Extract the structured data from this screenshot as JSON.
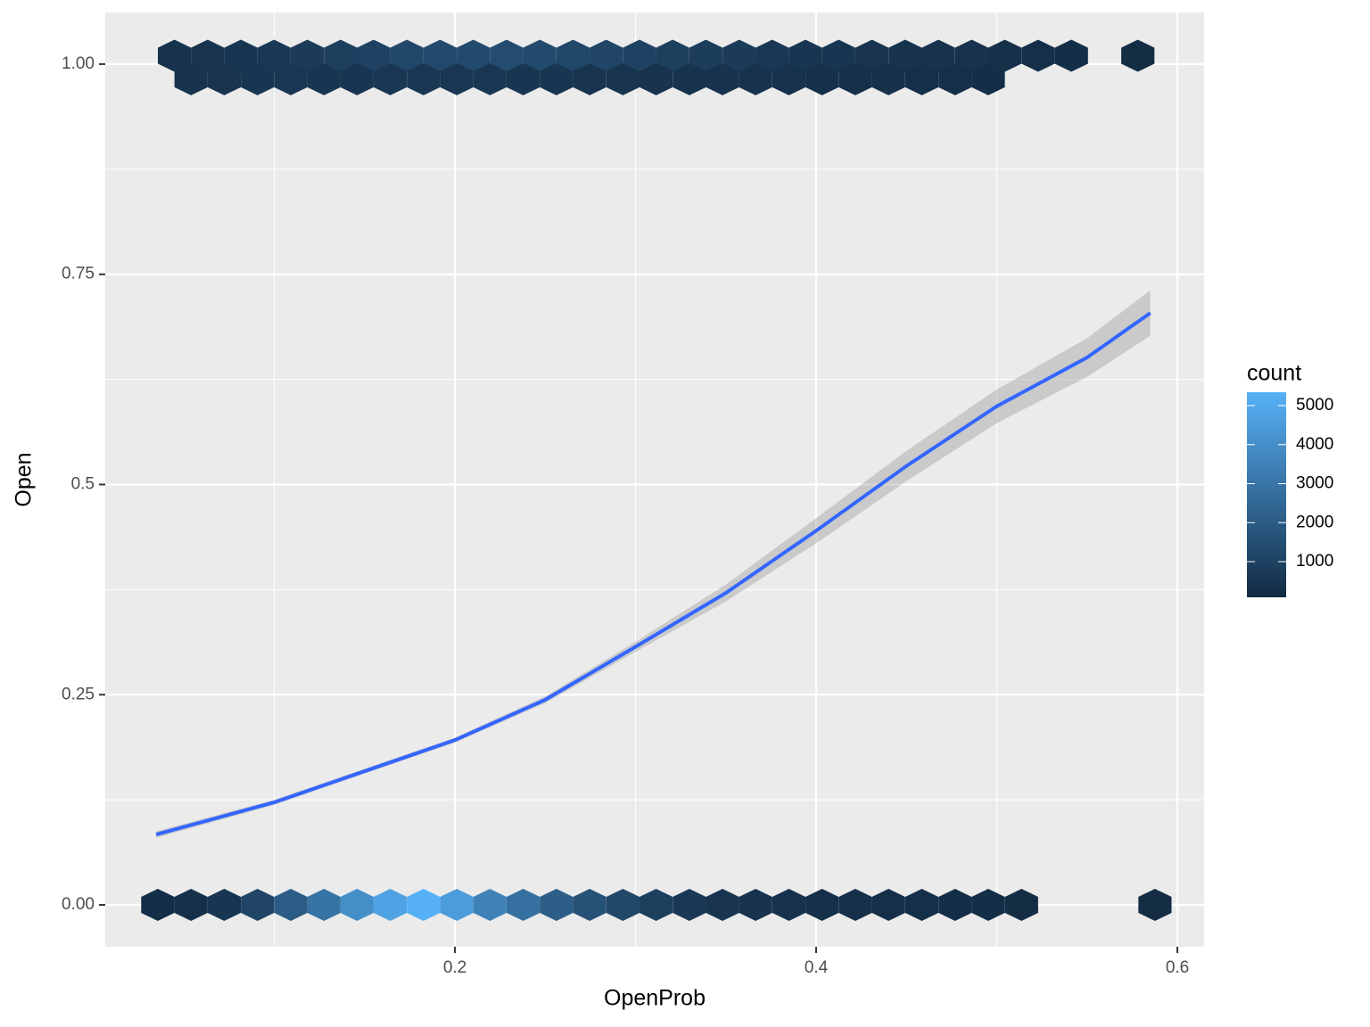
{
  "chart_data": {
    "type": "hexbin",
    "xlabel": "OpenProb",
    "ylabel": "Open",
    "x": [
      0.0355,
      0.0539,
      0.0723,
      0.0907,
      0.1091,
      0.1275,
      0.1458,
      0.1642,
      0.1826,
      0.201,
      0.2194,
      0.2378,
      0.2562,
      0.2746,
      0.293,
      0.3114,
      0.3298,
      0.3482,
      0.3665,
      0.3849,
      0.4033,
      0.4217,
      0.4401,
      0.4585,
      0.4769,
      0.4953,
      0.5137,
      0.5876,
      0.0447,
      0.0631,
      0.0815,
      0.0999,
      0.1183,
      0.1367,
      0.155,
      0.1734,
      0.1918,
      0.2102,
      0.2286,
      0.247,
      0.2654,
      0.2838,
      0.3022,
      0.3206,
      0.339,
      0.3574,
      0.3757,
      0.3941,
      0.4125,
      0.4309,
      0.4493,
      0.4677,
      0.4861,
      0.5045,
      0.5229,
      0.5413,
      0.5781,
      0.0539,
      0.0723,
      0.0907,
      0.1091,
      0.1275,
      0.1458,
      0.1642,
      0.1826,
      0.201,
      0.2194,
      0.2378,
      0.2562,
      0.2746,
      0.293,
      0.3114,
      0.3298,
      0.3482,
      0.3665,
      0.3849,
      0.4033,
      0.4217,
      0.4401,
      0.4585,
      0.4769,
      0.4953
    ],
    "y": [
      0,
      0,
      0,
      0,
      0,
      0,
      0,
      0,
      0,
      0,
      0,
      0,
      0,
      0,
      0,
      0,
      0,
      0,
      0,
      0,
      0,
      0,
      0,
      0,
      0,
      0,
      0,
      0,
      1.01,
      1.01,
      1.01,
      1.01,
      1.01,
      1.01,
      1.01,
      1.01,
      1.01,
      1.01,
      1.01,
      1.01,
      1.01,
      1.01,
      1.01,
      1.01,
      1.01,
      1.01,
      1.01,
      1.01,
      1.01,
      1.01,
      1.01,
      1.01,
      1.01,
      1.01,
      1.01,
      1.01,
      1.01,
      0.982,
      0.982,
      0.982,
      0.982,
      0.982,
      0.982,
      0.982,
      0.982,
      0.982,
      0.982,
      0.982,
      0.982,
      0.982,
      0.982,
      0.982,
      0.982,
      0.982,
      0.982,
      0.982,
      0.982,
      0.982,
      0.982,
      0.982,
      0.982,
      0.982
    ],
    "counts": [
      200,
      300,
      500,
      1100,
      2000,
      2900,
      4000,
      4800,
      5300,
      4500,
      3500,
      2800,
      2100,
      1600,
      1200,
      900,
      600,
      450,
      400,
      350,
      300,
      300,
      250,
      250,
      200,
      200,
      150,
      150,
      350,
      450,
      500,
      600,
      700,
      900,
      1000,
      1200,
      1300,
      1300,
      1400,
      1300,
      1200,
      1100,
      1000,
      900,
      800,
      700,
      600,
      500,
      500,
      450,
      400,
      400,
      350,
      300,
      250,
      200,
      150,
      400,
      450,
      500,
      550,
      500,
      500,
      550,
      550,
      550,
      550,
      500,
      500,
      450,
      450,
      400,
      400,
      400,
      350,
      350,
      300,
      300,
      300,
      250,
      250,
      200
    ],
    "smooth": {
      "color": "#3366FF",
      "band_color": "#999999",
      "x": [
        0.0346,
        0.1,
        0.15,
        0.2,
        0.25,
        0.3,
        0.35,
        0.4,
        0.45,
        0.5,
        0.55,
        0.585
      ],
      "y": [
        0.0837,
        0.122,
        0.159,
        0.196,
        0.244,
        0.307,
        0.371,
        0.445,
        0.522,
        0.593,
        0.651,
        0.704
      ],
      "ymin": [
        0.0797,
        0.119,
        0.156,
        0.193,
        0.24,
        0.301,
        0.361,
        0.43,
        0.504,
        0.573,
        0.628,
        0.677
      ],
      "ymax": [
        0.0877,
        0.125,
        0.162,
        0.199,
        0.248,
        0.313,
        0.381,
        0.46,
        0.54,
        0.613,
        0.674,
        0.731
      ]
    },
    "xlim": [
      0.0064,
      0.6148
    ],
    "ylim": [
      -0.0498,
      1.0614
    ],
    "xticks": [
      0.2,
      0.4,
      0.6
    ],
    "yticks": [
      {
        "value": 0,
        "label": "0.00"
      },
      0.25,
      0.5,
      0.75,
      {
        "value": 1,
        "label": "1.00"
      }
    ],
    "x_minor_grid": [
      0.1,
      0.3,
      0.5
    ],
    "y_minor_grid": [
      0.125,
      0.375,
      0.625,
      0.875
    ],
    "grid": true,
    "fill_scale": {
      "title": "count",
      "low": "#132B43",
      "high": "#56B1F7",
      "limits": [
        86,
        5343
      ],
      "ticks": [
        1000,
        2000,
        3000,
        4000,
        5000
      ]
    }
  }
}
